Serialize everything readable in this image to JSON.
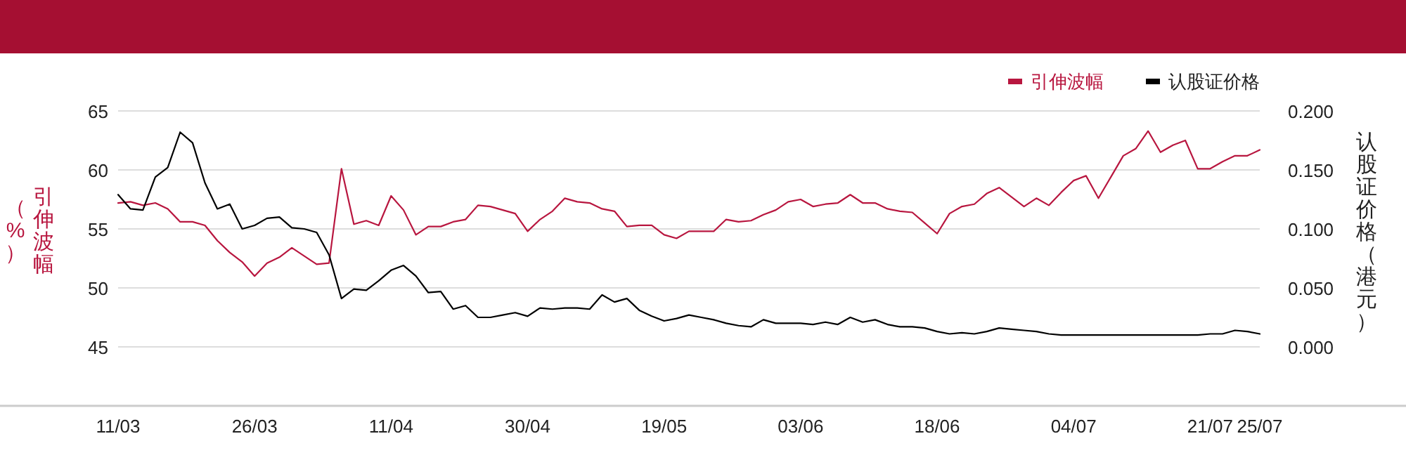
{
  "chart_data": {
    "type": "line",
    "categories": [
      "11/03",
      null,
      null,
      null,
      null,
      null,
      null,
      null,
      null,
      null,
      null,
      "26/03",
      null,
      null,
      null,
      null,
      null,
      null,
      null,
      null,
      null,
      null,
      "11/04",
      null,
      null,
      null,
      null,
      null,
      null,
      null,
      null,
      null,
      null,
      "30/04",
      null,
      null,
      null,
      null,
      null,
      null,
      null,
      null,
      null,
      null,
      "19/05",
      null,
      null,
      null,
      null,
      null,
      null,
      null,
      null,
      null,
      null,
      "03/06",
      null,
      null,
      null,
      null,
      null,
      null,
      null,
      null,
      null,
      null,
      "18/06",
      null,
      null,
      null,
      null,
      null,
      null,
      null,
      null,
      null,
      null,
      "04/07",
      null,
      null,
      null,
      null,
      null,
      null,
      null,
      null,
      null,
      null,
      "21/07",
      null,
      null,
      null,
      "25/07"
    ],
    "series": [
      {
        "name": "引伸波幅",
        "color": "#b8163f",
        "axis": "y",
        "values": [
          57.2,
          57.3,
          57.0,
          57.2,
          56.7,
          55.6,
          55.6,
          55.3,
          54.0,
          53.0,
          52.2,
          51.0,
          52.1,
          52.6,
          53.4,
          52.7,
          52.0,
          52.1,
          60.1,
          55.4,
          55.7,
          55.3,
          57.8,
          56.6,
          54.5,
          55.2,
          55.2,
          55.6,
          55.8,
          57.0,
          56.9,
          56.6,
          56.3,
          54.8,
          55.8,
          56.5,
          57.6,
          57.3,
          57.2,
          56.7,
          56.5,
          55.2,
          55.3,
          55.3,
          54.5,
          54.2,
          54.8,
          54.8,
          54.8,
          55.8,
          55.6,
          55.7,
          56.2,
          56.6,
          57.3,
          57.5,
          56.9,
          57.1,
          57.2,
          57.9,
          57.2,
          57.2,
          56.7,
          56.5,
          56.4,
          55.5,
          54.6,
          56.3,
          56.9,
          57.1,
          58.0,
          58.5,
          57.7,
          56.9,
          57.6,
          57.0,
          58.1,
          59.1,
          59.5,
          57.6,
          59.4,
          61.2,
          61.8,
          63.3,
          61.5,
          62.1,
          62.5,
          60.1,
          60.1,
          60.7,
          61.2,
          61.2,
          61.7
        ]
      },
      {
        "name": "认股证价格",
        "color": "#000000",
        "axis": "y2",
        "values": [
          0.129,
          0.117,
          0.116,
          0.144,
          0.152,
          0.182,
          0.173,
          0.139,
          0.117,
          0.121,
          0.1,
          0.103,
          0.109,
          0.11,
          0.101,
          0.1,
          0.097,
          0.078,
          0.041,
          0.049,
          0.048,
          0.056,
          0.065,
          0.069,
          0.06,
          0.046,
          0.047,
          0.032,
          0.035,
          0.025,
          0.025,
          0.027,
          0.029,
          0.026,
          0.033,
          0.032,
          0.033,
          0.033,
          0.032,
          0.044,
          0.038,
          0.041,
          0.031,
          0.026,
          0.022,
          0.024,
          0.027,
          0.025,
          0.023,
          0.02,
          0.018,
          0.017,
          0.023,
          0.02,
          0.02,
          0.02,
          0.019,
          0.021,
          0.019,
          0.025,
          0.021,
          0.023,
          0.019,
          0.017,
          0.017,
          0.016,
          0.013,
          0.011,
          0.012,
          0.011,
          0.013,
          0.016,
          0.015,
          0.014,
          0.013,
          0.011,
          0.01,
          0.01,
          0.01,
          0.01,
          0.01,
          0.01,
          0.01,
          0.01,
          0.01,
          0.01,
          0.01,
          0.01,
          0.011,
          0.011,
          0.014,
          0.013,
          0.011
        ]
      }
    ],
    "ylabel": "引伸波幅（%）",
    "y2label": "认股证价格（港元）",
    "ylim": [
      40,
      65
    ],
    "yticks": [
      45,
      50,
      55,
      60,
      65
    ],
    "y2lim": [
      -0.05,
      0.2
    ],
    "y2ticks": [
      {
        "value": 0,
        "label": "0.000"
      },
      {
        "value": 0.05,
        "label": "0.050"
      },
      {
        "value": 0.1,
        "label": "0.100"
      },
      {
        "value": 0.15,
        "label": "0.150"
      },
      {
        "value": 0.2,
        "label": "0.200"
      }
    ],
    "grid": "y",
    "legend": "top right"
  }
}
